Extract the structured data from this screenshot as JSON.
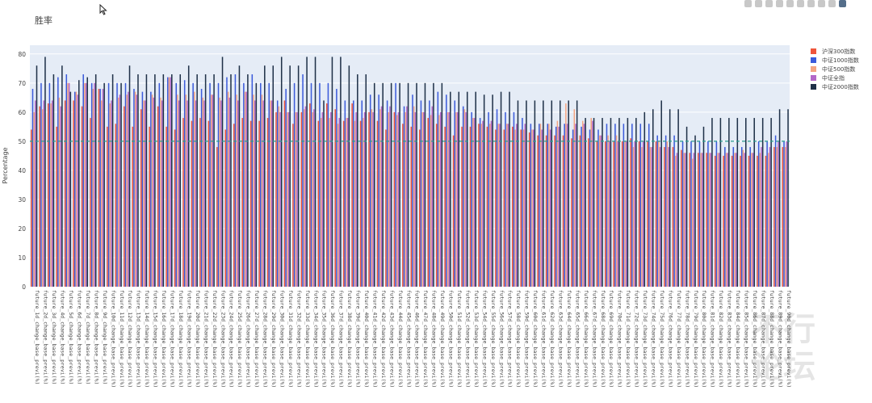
{
  "chart_data": {
    "type": "bar",
    "title": "胜率",
    "xlabel": "",
    "ylabel": "Percentage",
    "ylim": [
      0,
      83
    ],
    "yticks": [
      0,
      10,
      20,
      30,
      40,
      50,
      60,
      70,
      80
    ],
    "reference_line": 50,
    "grid": true,
    "legend_position": "top-right",
    "category_pattern": "future_{n}d_change_base_previ(%)",
    "category_range": [
      1,
      90
    ],
    "series": [
      {
        "name": "沪深300指数",
        "color": "#ef553b",
        "values": [
          54,
          62,
          63,
          55,
          64,
          64,
          62,
          58,
          68,
          55,
          56,
          62,
          55,
          61,
          55,
          62,
          55,
          54,
          58,
          57,
          58,
          57,
          48,
          54,
          56,
          58,
          57,
          57,
          58,
          60,
          64,
          56,
          60,
          63,
          57,
          63,
          61,
          57,
          63,
          57,
          60,
          57,
          54,
          60,
          56,
          55,
          54,
          58,
          56,
          55,
          52,
          55,
          55,
          56,
          55,
          54,
          54,
          55,
          54,
          53,
          52,
          52,
          52,
          52,
          51,
          52,
          51,
          50,
          50,
          50,
          50,
          51,
          50,
          50,
          50,
          48,
          48,
          47,
          46,
          46,
          46,
          45,
          45,
          45,
          45,
          45,
          45,
          45,
          48,
          48
        ]
      },
      {
        "name": "中证1000指数",
        "color": "#3b5bdb",
        "values": [
          68,
          70,
          70,
          72,
          73,
          67,
          73,
          70,
          68,
          70,
          70,
          70,
          68,
          67,
          67,
          70,
          72,
          70,
          71,
          70,
          68,
          70,
          70,
          72,
          73,
          70,
          73,
          70,
          70,
          64,
          68,
          70,
          73,
          70,
          70,
          70,
          68,
          64,
          64,
          64,
          66,
          66,
          64,
          70,
          62,
          66,
          64,
          64,
          67,
          66,
          64,
          62,
          60,
          58,
          60,
          61,
          60,
          60,
          58,
          56,
          56,
          56,
          55,
          56,
          54,
          55,
          54,
          54,
          56,
          56,
          56,
          56,
          56,
          56,
          52,
          52,
          52,
          50,
          50,
          50,
          50,
          50,
          48,
          48,
          48,
          48,
          50,
          50,
          52,
          50
        ]
      },
      {
        "name": "中证500指数",
        "color": "#f4a582",
        "values": [
          60,
          61,
          63,
          65,
          70,
          67,
          70,
          68,
          64,
          63,
          65,
          66,
          67,
          64,
          66,
          65,
          72,
          66,
          66,
          67,
          65,
          66,
          65,
          67,
          66,
          67,
          66,
          66,
          64,
          62,
          60,
          60,
          61,
          60,
          58,
          58,
          56,
          58,
          57,
          58,
          61,
          61,
          60,
          59,
          60,
          62,
          60,
          59,
          59,
          60,
          60,
          61,
          58,
          56,
          56,
          56,
          56,
          54,
          54,
          54,
          56,
          56,
          57,
          63,
          61,
          57,
          58,
          52,
          52,
          52,
          50,
          48,
          48,
          48,
          50,
          50,
          45,
          46,
          44,
          46,
          46,
          46,
          46,
          46,
          47,
          46,
          46,
          46,
          48,
          48
        ]
      },
      {
        "name": "中证全指",
        "color": "#b368c8",
        "values": [
          64,
          64,
          64,
          62,
          70,
          66,
          70,
          70,
          68,
          64,
          66,
          67,
          66,
          64,
          65,
          64,
          72,
          64,
          64,
          64,
          64,
          66,
          64,
          65,
          64,
          67,
          64,
          64,
          64,
          60,
          60,
          60,
          62,
          61,
          60,
          60,
          58,
          58,
          60,
          60,
          60,
          62,
          62,
          60,
          62,
          60,
          60,
          62,
          60,
          60,
          60,
          60,
          58,
          57,
          57,
          56,
          56,
          56,
          56,
          54,
          54,
          54,
          55,
          56,
          56,
          56,
          57,
          52,
          50,
          50,
          50,
          50,
          50,
          48,
          48,
          48,
          46,
          46,
          46,
          46,
          46,
          46,
          46,
          46,
          46,
          46,
          48,
          48,
          50,
          50
        ]
      },
      {
        "name": "中证2000指数",
        "color": "#1f3148",
        "values": [
          76,
          79,
          73,
          76,
          67,
          71,
          72,
          73,
          70,
          73,
          70,
          76,
          73,
          73,
          73,
          73,
          73,
          73,
          76,
          73,
          73,
          73,
          79,
          73,
          76,
          73,
          70,
          76,
          76,
          79,
          76,
          76,
          79,
          79,
          64,
          79,
          79,
          76,
          73,
          73,
          70,
          70,
          70,
          70,
          70,
          70,
          70,
          70,
          70,
          67,
          67,
          67,
          67,
          66,
          66,
          67,
          67,
          64,
          64,
          64,
          64,
          64,
          64,
          64,
          64,
          58,
          58,
          58,
          58,
          58,
          58,
          58,
          60,
          61,
          64,
          61,
          61,
          55,
          52,
          55,
          58,
          58,
          58,
          58,
          58,
          58,
          58,
          58,
          61,
          61
        ]
      }
    ]
  },
  "legend_items": [
    {
      "label": "沪深300指数"
    },
    {
      "label": "中证1000指数"
    },
    {
      "label": "中证500指数"
    },
    {
      "label": "中证全指"
    },
    {
      "label": "中证2000指数"
    }
  ],
  "colors": {
    "plot_bg": "#e5ecf6",
    "grid": "#ffffff",
    "reference_line": "#2a9d8f"
  },
  "watermark": [
    "不行",
    "论坛"
  ],
  "modebar_icons": [
    "camera-icon",
    "zoom-icon",
    "pan-icon",
    "box-select-icon",
    "lasso-icon",
    "zoom-in-icon",
    "zoom-out-icon",
    "autoscale-icon",
    "reset-axes-icon",
    "plotly-logo-icon"
  ]
}
